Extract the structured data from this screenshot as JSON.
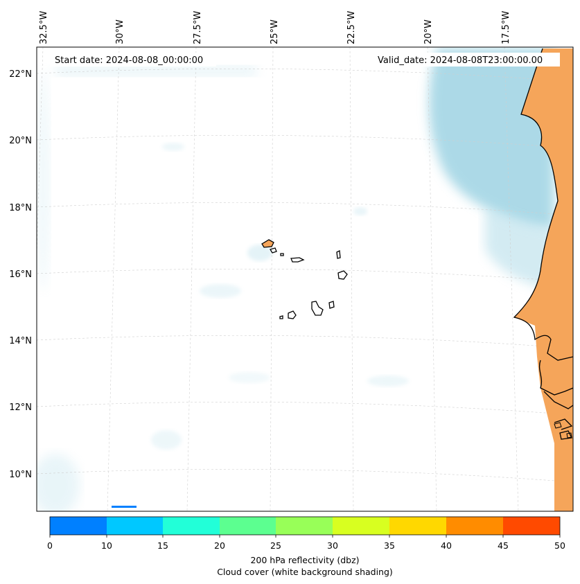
{
  "map": {
    "start_date": "Start date: 2024-08-08_00:00:00",
    "valid_date": "Valid_date: 2024-08-08T23:00:00.00",
    "lon_labels": [
      "32.5°W",
      "30°W",
      "27.5°W",
      "25°W",
      "22.5°W",
      "20°W",
      "17.5°W"
    ],
    "lat_labels": [
      "22°N",
      "20°N",
      "18°N",
      "16°N",
      "14°N",
      "12°N",
      "10°N"
    ]
  },
  "colorbar": {
    "ticks": [
      "0",
      "10",
      "15",
      "20",
      "25",
      "30",
      "35",
      "40",
      "45",
      "50"
    ],
    "colors": [
      "#0080ff",
      "#00c8ff",
      "#22ffd8",
      "#5cff90",
      "#98ff58",
      "#d8ff20",
      "#ffd800",
      "#ff8c00",
      "#ff4a00"
    ],
    "label": "200 hPa reflectivity (dbz)",
    "sublabel": "Cloud cover (white background shading)"
  },
  "colors": {
    "land": "#f5a55a",
    "cloud": "#a8d8e6",
    "coastline": "#000000",
    "grid": "#cfcfcf"
  }
}
